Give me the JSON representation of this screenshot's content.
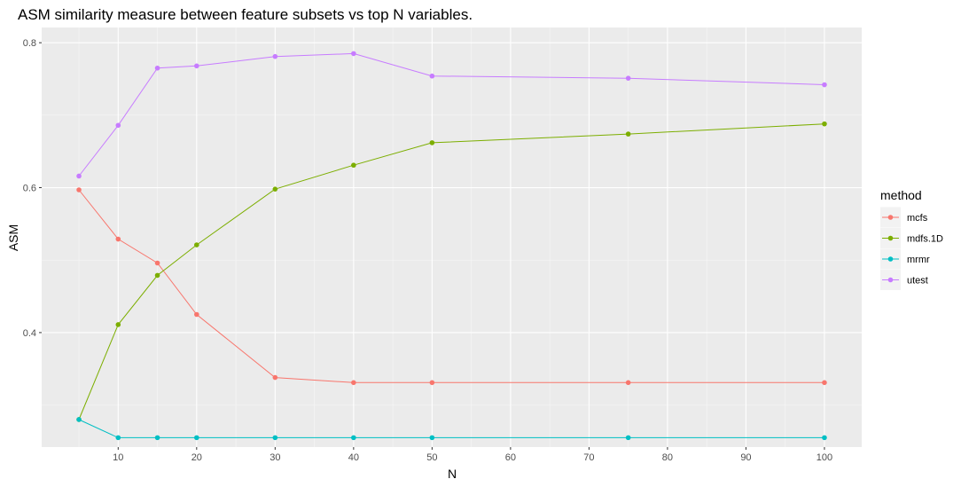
{
  "chart_data": {
    "type": "line",
    "title": "ASM similarity measure between feature subsets vs top N variables.",
    "xlabel": "N",
    "ylabel": "ASM",
    "x": [
      5,
      10,
      15,
      20,
      30,
      40,
      50,
      75,
      100
    ],
    "x_ticks": [
      10,
      20,
      30,
      40,
      50,
      60,
      70,
      80,
      90,
      100
    ],
    "y_ticks": [
      0.4,
      0.6,
      0.8
    ],
    "y_tick_labels": [
      "0.4",
      "0.6",
      "0.8"
    ],
    "xlim": [
      0.25,
      104.75
    ],
    "ylim": [
      0.242,
      0.821
    ],
    "grid": true,
    "legend_title": "method",
    "legend_position": "right",
    "series": [
      {
        "name": "mcfs",
        "color": "#F8766D",
        "values": [
          0.597,
          0.529,
          0.496,
          0.425,
          0.338,
          0.331,
          0.331,
          0.331,
          0.331
        ]
      },
      {
        "name": "mdfs.1D",
        "color": "#7CAE00",
        "values": [
          0.28,
          0.411,
          0.479,
          0.521,
          0.598,
          0.631,
          0.662,
          0.674,
          0.688
        ]
      },
      {
        "name": "mrmr",
        "color": "#00BFC4",
        "values": [
          0.28,
          0.255,
          0.255,
          0.255,
          0.255,
          0.255,
          0.255,
          0.255,
          0.255
        ]
      },
      {
        "name": "utest",
        "color": "#C77CFF",
        "values": [
          0.616,
          0.686,
          0.765,
          0.768,
          0.781,
          0.785,
          0.754,
          0.751,
          0.742
        ]
      }
    ]
  }
}
